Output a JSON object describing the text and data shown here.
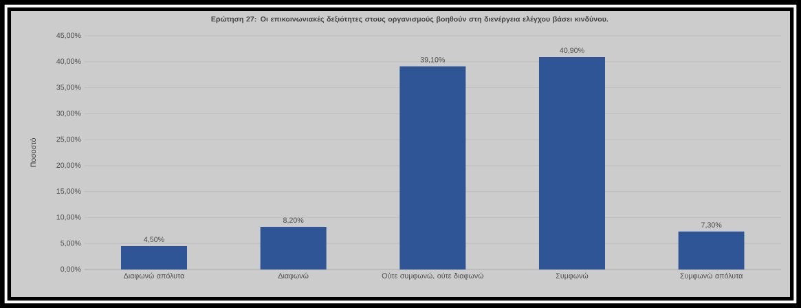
{
  "chart_data": {
    "type": "bar",
    "title": "Ερώτηση 27: Οι επικοινωνιακές δεξιότητες στους οργανισμούς βοηθούν στη διενέργεια ελέγχου βάσει κινδύνου.",
    "ylabel": "Ποσοστό",
    "categories": [
      "Διαφωνώ απόλυτα",
      "Διαφωνώ",
      "Ούτε συμφωνώ, ούτε διαφωνώ",
      "Συμφωνώ",
      "Συμφωνώ απόλυτα"
    ],
    "values": [
      4.5,
      8.2,
      39.1,
      40.9,
      7.3
    ],
    "value_labels": [
      "4,50%",
      "8,20%",
      "39,10%",
      "40,90%",
      "7,30%"
    ],
    "color": "#2f5597",
    "ylim": [
      0,
      45
    ],
    "yticks": [
      {
        "value": 0,
        "label": "0,00%"
      },
      {
        "value": 5,
        "label": "5,00%"
      },
      {
        "value": 10,
        "label": "10,00%"
      },
      {
        "value": 15,
        "label": "15,00%"
      },
      {
        "value": 20,
        "label": "20,00%"
      },
      {
        "value": 25,
        "label": "25,00%"
      },
      {
        "value": 30,
        "label": "30,00%"
      },
      {
        "value": 35,
        "label": "35,00%"
      },
      {
        "value": 40,
        "label": "40,00%"
      },
      {
        "value": 45,
        "label": "45,00%"
      }
    ],
    "grid": "y"
  }
}
